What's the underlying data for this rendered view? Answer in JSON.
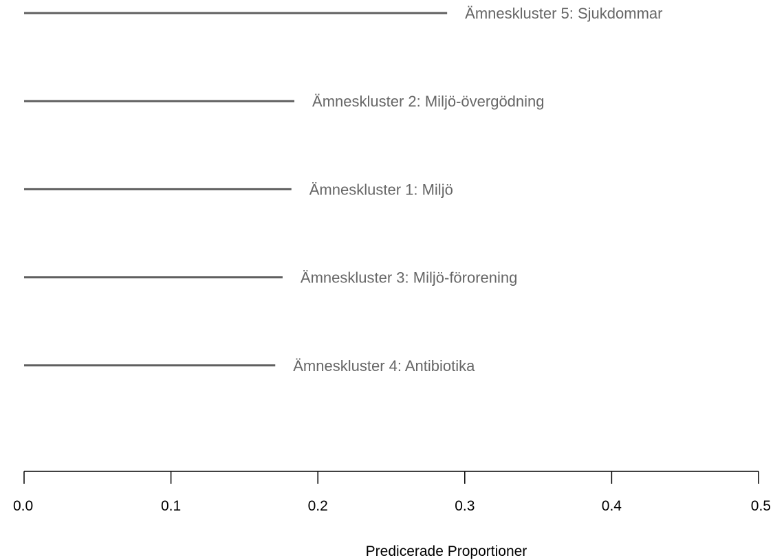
{
  "chart_data": {
    "type": "bar",
    "orientation": "horizontal",
    "categories": [
      "Ämneskluster 5: Sjukdommar",
      "Ämneskluster 2: Miljö-övergödning",
      "Ämneskluster 1: Miljö",
      "Ämneskluster 3: Miljö-förorening",
      "Ämneskluster 4: Antibiotika"
    ],
    "values": [
      0.288,
      0.184,
      0.182,
      0.176,
      0.171
    ],
    "title": "",
    "xlabel": "Predicerade Proportioner",
    "ylabel": "",
    "xlim": [
      0,
      0.5
    ],
    "xticks": [
      0,
      0.1,
      0.2,
      0.3,
      0.4,
      0.5
    ],
    "xtick_labels": [
      "0.0",
      "0.1",
      "0.2",
      "0.3",
      "0.4",
      "0.5"
    ],
    "grid": false,
    "legend": "none",
    "colors": {
      "bar": "#5f5f5f",
      "label": "#666666",
      "axis": "#000000"
    }
  }
}
